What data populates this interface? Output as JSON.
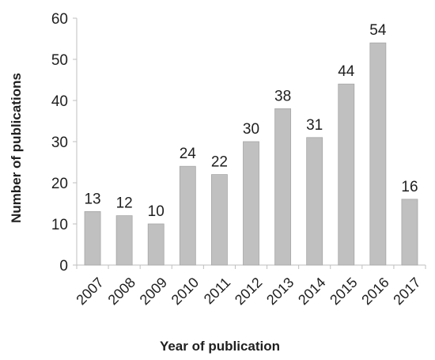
{
  "chart_data": {
    "type": "bar",
    "title": "",
    "xlabel": "Year of publication",
    "ylabel": "Number of publications",
    "categories": [
      "2007",
      "2008",
      "2009",
      "2010",
      "2011",
      "2012",
      "2013",
      "2014",
      "2015",
      "2016",
      "2017"
    ],
    "values": [
      13,
      12,
      10,
      24,
      22,
      30,
      38,
      31,
      44,
      54,
      16
    ],
    "ylim": [
      0,
      60
    ],
    "yticks": [
      0,
      10,
      20,
      30,
      40,
      50,
      60
    ],
    "grid": false,
    "legend": "none",
    "bar_color": "#c0c0c0",
    "bar_edge_color": "#a6a6a6",
    "axis_color": "#bfbfbf"
  }
}
